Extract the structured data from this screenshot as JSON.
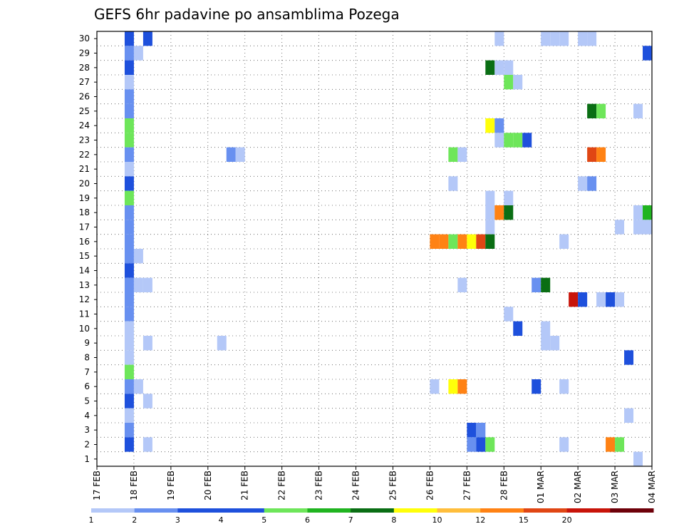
{
  "chart_data": {
    "type": "heatmap",
    "title": "GEFS 6hr padavine po ansamblima Pozega",
    "xlabel": "",
    "ylabel": "",
    "x_tick_labels": [
      "17 FEB",
      "18 FEB",
      "19 FEB",
      "20 FEB",
      "21 FEB",
      "22 FEB",
      "23 FEB",
      "24 FEB",
      "25 FEB",
      "26 FEB",
      "27 FEB",
      "28 FEB",
      "01 MAR",
      "02 MAR",
      "03 MAR",
      "04 MAR"
    ],
    "y_tick_labels": [
      "1",
      "2",
      "3",
      "4",
      "5",
      "6",
      "7",
      "8",
      "9",
      "10",
      "11",
      "12",
      "13",
      "14",
      "15",
      "16",
      "17",
      "18",
      "19",
      "20",
      "21",
      "22",
      "23",
      "24",
      "25",
      "26",
      "27",
      "28",
      "29",
      "30"
    ],
    "xlim_days": [
      0,
      15
    ],
    "ylim": [
      0,
      30
    ],
    "grid": true,
    "colorbar": {
      "placement": "bottom",
      "bounds": [
        "1",
        "2",
        "3",
        "4",
        "5",
        "6",
        "7",
        "8",
        "10",
        "12",
        "15",
        "20",
        ""
      ],
      "colors": [
        "#b4c8f8",
        "#6890f0",
        "#1e50dc",
        "#1e50dc",
        "#6ee65a",
        "#20b420",
        "#0a6e14",
        "#ffff0a",
        "#ffbe3c",
        "#ff8214",
        "#e04614",
        "#c8140a",
        "#6e000a"
      ]
    },
    "cells_note_units": "x = day index from 17 FEB (step 0.25 = 6h), y = ensemble member, v = precipitation class",
    "cells": [
      {
        "x": 0.75,
        "y": 30,
        "v": 3
      },
      {
        "x": 1.25,
        "y": 30,
        "v": 3
      },
      {
        "x": 10.75,
        "y": 30,
        "v": 1
      },
      {
        "x": 12.0,
        "y": 30,
        "v": 1
      },
      {
        "x": 12.25,
        "y": 30,
        "v": 1
      },
      {
        "x": 12.5,
        "y": 30,
        "v": 1
      },
      {
        "x": 13.0,
        "y": 30,
        "v": 1
      },
      {
        "x": 13.25,
        "y": 30,
        "v": 1
      },
      {
        "x": 0.75,
        "y": 29,
        "v": 2
      },
      {
        "x": 1.0,
        "y": 29,
        "v": 1
      },
      {
        "x": 14.75,
        "y": 29,
        "v": 3
      },
      {
        "x": 0.75,
        "y": 28,
        "v": 3
      },
      {
        "x": 10.5,
        "y": 28,
        "v": 7
      },
      {
        "x": 10.75,
        "y": 28,
        "v": 1
      },
      {
        "x": 11.0,
        "y": 28,
        "v": 1
      },
      {
        "x": 0.75,
        "y": 27,
        "v": 1
      },
      {
        "x": 11.0,
        "y": 27,
        "v": 5
      },
      {
        "x": 11.25,
        "y": 27,
        "v": 1
      },
      {
        "x": 0.75,
        "y": 26,
        "v": 2
      },
      {
        "x": 0.75,
        "y": 25,
        "v": 2
      },
      {
        "x": 13.25,
        "y": 25,
        "v": 7
      },
      {
        "x": 13.5,
        "y": 25,
        "v": 5
      },
      {
        "x": 14.5,
        "y": 25,
        "v": 1
      },
      {
        "x": 0.75,
        "y": 24,
        "v": 5
      },
      {
        "x": 10.5,
        "y": 24,
        "v": 8
      },
      {
        "x": 10.75,
        "y": 24,
        "v": 2
      },
      {
        "x": 0.75,
        "y": 23,
        "v": 5
      },
      {
        "x": 10.75,
        "y": 23,
        "v": 1
      },
      {
        "x": 11.0,
        "y": 23,
        "v": 5
      },
      {
        "x": 11.25,
        "y": 23,
        "v": 5
      },
      {
        "x": 11.5,
        "y": 23,
        "v": 3
      },
      {
        "x": 0.75,
        "y": 22,
        "v": 2
      },
      {
        "x": 3.5,
        "y": 22,
        "v": 2
      },
      {
        "x": 3.75,
        "y": 22,
        "v": 1
      },
      {
        "x": 9.5,
        "y": 22,
        "v": 5
      },
      {
        "x": 9.75,
        "y": 22,
        "v": 1
      },
      {
        "x": 13.25,
        "y": 22,
        "v": 11
      },
      {
        "x": 13.5,
        "y": 22,
        "v": 10
      },
      {
        "x": 0.75,
        "y": 21,
        "v": 1
      },
      {
        "x": 0.75,
        "y": 20,
        "v": 3
      },
      {
        "x": 9.5,
        "y": 20,
        "v": 1
      },
      {
        "x": 13.0,
        "y": 20,
        "v": 1
      },
      {
        "x": 13.25,
        "y": 20,
        "v": 2
      },
      {
        "x": 0.75,
        "y": 19,
        "v": 5
      },
      {
        "x": 10.5,
        "y": 19,
        "v": 1
      },
      {
        "x": 11.0,
        "y": 19,
        "v": 1
      },
      {
        "x": 0.75,
        "y": 18,
        "v": 2
      },
      {
        "x": 10.5,
        "y": 18,
        "v": 1
      },
      {
        "x": 10.75,
        "y": 18,
        "v": 10
      },
      {
        "x": 11.0,
        "y": 18,
        "v": 7
      },
      {
        "x": 14.5,
        "y": 18,
        "v": 1
      },
      {
        "x": 14.75,
        "y": 18,
        "v": 6
      },
      {
        "x": 0.75,
        "y": 17,
        "v": 2
      },
      {
        "x": 10.5,
        "y": 17,
        "v": 1
      },
      {
        "x": 14.0,
        "y": 17,
        "v": 1
      },
      {
        "x": 14.5,
        "y": 17,
        "v": 1
      },
      {
        "x": 14.75,
        "y": 17,
        "v": 1
      },
      {
        "x": 0.75,
        "y": 16,
        "v": 2
      },
      {
        "x": 9.0,
        "y": 16,
        "v": 10
      },
      {
        "x": 9.25,
        "y": 16,
        "v": 10
      },
      {
        "x": 9.5,
        "y": 16,
        "v": 5
      },
      {
        "x": 9.75,
        "y": 16,
        "v": 10
      },
      {
        "x": 10.0,
        "y": 16,
        "v": 8
      },
      {
        "x": 10.25,
        "y": 16,
        "v": 11
      },
      {
        "x": 10.5,
        "y": 16,
        "v": 7
      },
      {
        "x": 12.5,
        "y": 16,
        "v": 1
      },
      {
        "x": 0.75,
        "y": 15,
        "v": 2
      },
      {
        "x": 1.0,
        "y": 15,
        "v": 1
      },
      {
        "x": 0.75,
        "y": 14,
        "v": 3
      },
      {
        "x": 0.75,
        "y": 13,
        "v": 2
      },
      {
        "x": 1.0,
        "y": 13,
        "v": 1
      },
      {
        "x": 1.25,
        "y": 13,
        "v": 1
      },
      {
        "x": 9.75,
        "y": 13,
        "v": 1
      },
      {
        "x": 11.75,
        "y": 13,
        "v": 2
      },
      {
        "x": 12.0,
        "y": 13,
        "v": 7
      },
      {
        "x": 0.75,
        "y": 12,
        "v": 2
      },
      {
        "x": 12.75,
        "y": 12,
        "v": 12
      },
      {
        "x": 13.0,
        "y": 12,
        "v": 3
      },
      {
        "x": 13.5,
        "y": 12,
        "v": 1
      },
      {
        "x": 13.75,
        "y": 12,
        "v": 3
      },
      {
        "x": 14.0,
        "y": 12,
        "v": 1
      },
      {
        "x": 0.75,
        "y": 11,
        "v": 2
      },
      {
        "x": 11.0,
        "y": 11,
        "v": 1
      },
      {
        "x": 0.75,
        "y": 10,
        "v": 1
      },
      {
        "x": 11.25,
        "y": 10,
        "v": 3
      },
      {
        "x": 12.0,
        "y": 10,
        "v": 1
      },
      {
        "x": 0.75,
        "y": 9,
        "v": 1
      },
      {
        "x": 1.25,
        "y": 9,
        "v": 1
      },
      {
        "x": 3.25,
        "y": 9,
        "v": 1
      },
      {
        "x": 12.0,
        "y": 9,
        "v": 1
      },
      {
        "x": 12.25,
        "y": 9,
        "v": 1
      },
      {
        "x": 0.75,
        "y": 8,
        "v": 1
      },
      {
        "x": 14.25,
        "y": 8,
        "v": 3
      },
      {
        "x": 0.75,
        "y": 7,
        "v": 5
      },
      {
        "x": 0.75,
        "y": 6,
        "v": 2
      },
      {
        "x": 1.0,
        "y": 6,
        "v": 1
      },
      {
        "x": 9.0,
        "y": 6,
        "v": 1
      },
      {
        "x": 9.5,
        "y": 6,
        "v": 8
      },
      {
        "x": 9.75,
        "y": 6,
        "v": 10
      },
      {
        "x": 11.75,
        "y": 6,
        "v": 3
      },
      {
        "x": 12.5,
        "y": 6,
        "v": 1
      },
      {
        "x": 0.75,
        "y": 5,
        "v": 3
      },
      {
        "x": 1.25,
        "y": 5,
        "v": 1
      },
      {
        "x": 0.75,
        "y": 4,
        "v": 1
      },
      {
        "x": 14.25,
        "y": 4,
        "v": 1
      },
      {
        "x": 0.75,
        "y": 3,
        "v": 2
      },
      {
        "x": 10.0,
        "y": 3,
        "v": 3
      },
      {
        "x": 10.25,
        "y": 3,
        "v": 2
      },
      {
        "x": 0.75,
        "y": 2,
        "v": 3
      },
      {
        "x": 1.25,
        "y": 2,
        "v": 1
      },
      {
        "x": 10.0,
        "y": 2,
        "v": 2
      },
      {
        "x": 10.25,
        "y": 2,
        "v": 3
      },
      {
        "x": 10.5,
        "y": 2,
        "v": 5
      },
      {
        "x": 12.5,
        "y": 2,
        "v": 1
      },
      {
        "x": 13.75,
        "y": 2,
        "v": 10
      },
      {
        "x": 14.0,
        "y": 2,
        "v": 5
      },
      {
        "x": 14.5,
        "y": 1,
        "v": 1
      }
    ]
  }
}
